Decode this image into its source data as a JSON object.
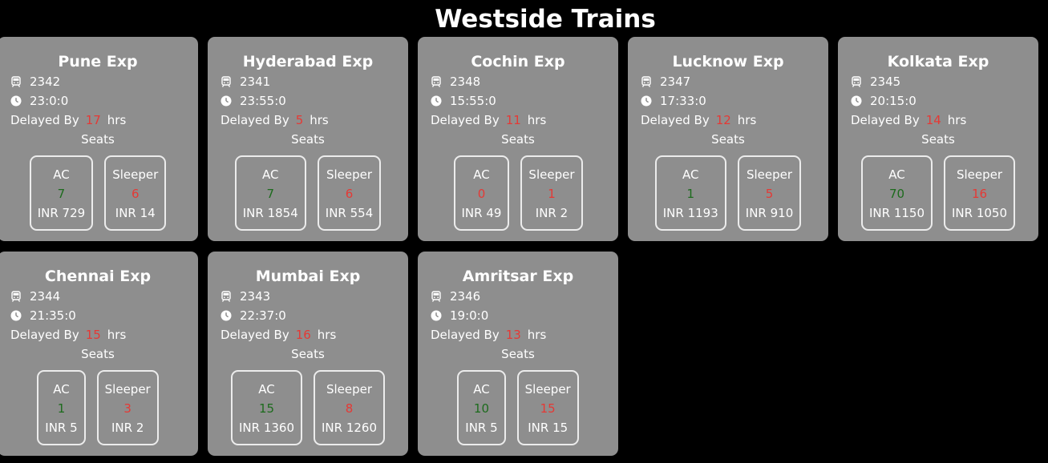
{
  "header": {
    "title": "Westside Trains"
  },
  "labels": {
    "delayed_prefix": "Delayed By",
    "delayed_suffix": "hrs",
    "seats": "Seats",
    "ac": "AC",
    "sleeper": "Sleeper"
  },
  "colors": {
    "background": "#000000",
    "card": "#8e8e8e",
    "available": "#1d6b1d",
    "alert": "#e53935"
  },
  "trains": [
    {
      "name": "Pune Exp",
      "number": "2342",
      "time": "23:0:0",
      "delay": "17",
      "ac_count": "7",
      "ac_price": "INR 729",
      "sleeper_count": "6",
      "sleeper_price": "INR 14"
    },
    {
      "name": "Hyderabad Exp",
      "number": "2341",
      "time": "23:55:0",
      "delay": "5",
      "ac_count": "7",
      "ac_price": "INR 1854",
      "sleeper_count": "6",
      "sleeper_price": "INR 554"
    },
    {
      "name": "Cochin Exp",
      "number": "2348",
      "time": "15:55:0",
      "delay": "11",
      "ac_count": "0",
      "ac_price": "INR 49",
      "sleeper_count": "1",
      "sleeper_price": "INR 2"
    },
    {
      "name": "Lucknow Exp",
      "number": "2347",
      "time": "17:33:0",
      "delay": "12",
      "ac_count": "1",
      "ac_price": "INR 1193",
      "sleeper_count": "5",
      "sleeper_price": "INR 910"
    },
    {
      "name": "Kolkata Exp",
      "number": "2345",
      "time": "20:15:0",
      "delay": "14",
      "ac_count": "70",
      "ac_price": "INR 1150",
      "sleeper_count": "16",
      "sleeper_price": "INR 1050"
    },
    {
      "name": "Chennai Exp",
      "number": "2344",
      "time": "21:35:0",
      "delay": "15",
      "ac_count": "1",
      "ac_price": "INR 5",
      "sleeper_count": "3",
      "sleeper_price": "INR 2"
    },
    {
      "name": "Mumbai Exp",
      "number": "2343",
      "time": "22:37:0",
      "delay": "16",
      "ac_count": "15",
      "ac_price": "INR 1360",
      "sleeper_count": "8",
      "sleeper_price": "INR 1260"
    },
    {
      "name": "Amritsar Exp",
      "number": "2346",
      "time": "19:0:0",
      "delay": "13",
      "ac_count": "10",
      "ac_price": "INR 5",
      "sleeper_count": "15",
      "sleeper_price": "INR 15"
    }
  ],
  "seat_colors": [
    {
      "ac": "green",
      "sleeper": "red"
    },
    {
      "ac": "green",
      "sleeper": "red"
    },
    {
      "ac": "red",
      "sleeper": "red"
    },
    {
      "ac": "green",
      "sleeper": "red"
    },
    {
      "ac": "green",
      "sleeper": "red"
    },
    {
      "ac": "green",
      "sleeper": "red"
    },
    {
      "ac": "green",
      "sleeper": "red"
    },
    {
      "ac": "green",
      "sleeper": "red"
    }
  ]
}
